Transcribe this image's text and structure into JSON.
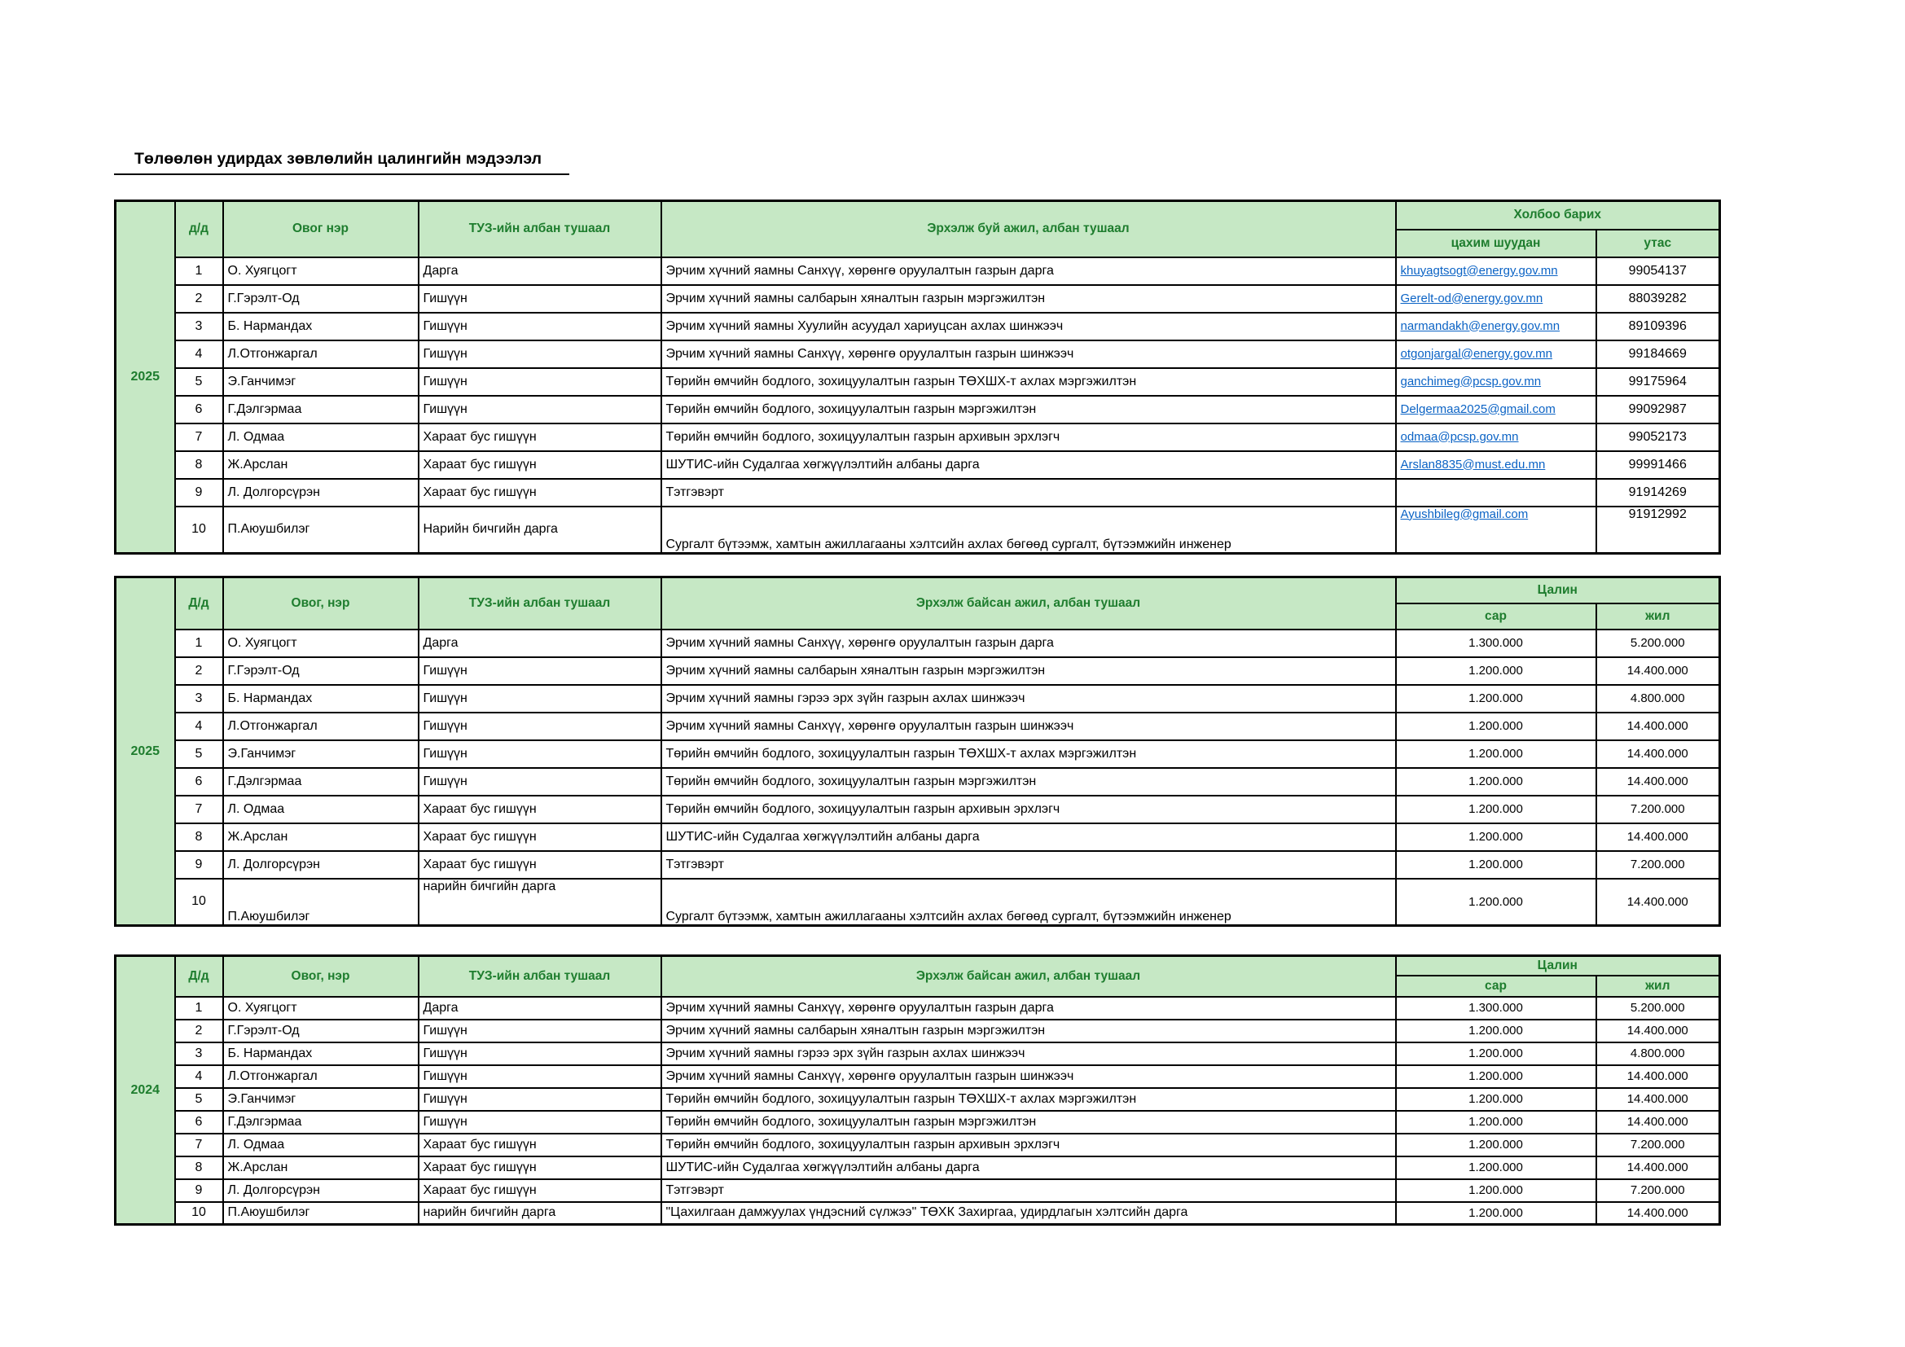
{
  "page": {
    "title": "Төлөөлөн удирдах зөвлөлийн цалингийн мэдээлэл"
  },
  "colors": {
    "header_fill": "#c6e8c5",
    "header_text": "#1e7d2e",
    "link_blue": "#0b63c5",
    "border": "#000000"
  },
  "tables": [
    {
      "id": "contacts-2025",
      "year": "2025",
      "kind": "contacts",
      "columns": {
        "index": "д/д",
        "name": "Овог нэр",
        "position": "ТУЗ-ийн албан тушаал",
        "job": "Эрхэлж буй ажил, албан тушаал",
        "group": "Холбоо барих",
        "col1": "цахим шуудан",
        "col2": "утас"
      },
      "rows": [
        {
          "index": "1",
          "name": "О. Хуягцогт",
          "position": "Дарга",
          "job": "Эрчим хүчний яамны Санхүү, хөрөнгө оруулалтын газрын дарга",
          "email": "khuyagtsogt@energy.gov.mn",
          "phone": "99054137"
        },
        {
          "index": "2",
          "name": "Г.Гэрэлт-Од",
          "position": "Гишүүн",
          "job": "Эрчим хүчний яамны салбарын хяналтын газрын мэргэжилтэн",
          "email": "Gerelt-od@energy.gov.mn",
          "phone": "88039282"
        },
        {
          "index": "3",
          "name": "Б. Нармандах",
          "position": "Гишүүн",
          "job": "Эрчим хүчний яамны Хуулийн асуудал хариуцсан ахлах шинжээч",
          "email": "narmandakh@energy.gov.mn",
          "phone": "89109396"
        },
        {
          "index": "4",
          "name": "Л.Отгонжаргал",
          "position": "Гишүүн",
          "job": "Эрчим хүчний яамны Санхүү, хөрөнгө оруулалтын газрын шинжээч",
          "email": "otgonjargal@energy.gov.mn",
          "phone": "99184669"
        },
        {
          "index": "5",
          "name": "Э.Ганчимэг",
          "position": "Гишүүн",
          "job": "Төрийн өмчийн бодлого, зохицуулалтын газрын ТӨХШХ-т ахлах мэргэжилтэн",
          "email": "ganchimeg@pcsp.gov.mn",
          "phone": "99175964"
        },
        {
          "index": "6",
          "name": "Г.Дэлгэрмаа",
          "position": "Гишүүн",
          "job": "Төрийн өмчийн бодлого, зохицуулалтын газрын мэргэжилтэн",
          "email": "Delgermaa2025@gmail.com",
          "phone": "99092987"
        },
        {
          "index": "7",
          "name": "Л. Одмаа",
          "position": "Хараат бус гишүүн",
          "job": "Төрийн өмчийн бодлого, зохицуулалтын газрын архивын эрхлэгч",
          "email": "odmaa@pcsp.gov.mn",
          "phone": "99052173"
        },
        {
          "index": "8",
          "name": "Ж.Арслан",
          "position": "Хараат бус гишүүн",
          "job": "ШУТИС-ийн Судалгаа хөгжүүлэлтийн албаны дарга",
          "email": "Arslan8835@must.edu.mn",
          "phone": "99991466"
        },
        {
          "index": "9",
          "name": "Л. Долгорсүрэн",
          "position": "Хараат бус гишүүн",
          "job": "Тэтгэвэрт",
          "email": "",
          "phone": "91914269"
        },
        {
          "index": "10",
          "name": "П.Аюушбилэг",
          "position": "Нарийн бичгийн дарга",
          "job": "Сургалт бүтээмж, хамтын ажиллагааны хэлтсийн ахлах бөгөөд сургалт, бүтээмжийн инженер",
          "email": "Ayushbileg@gmail.com",
          "phone": "91912992"
        }
      ]
    },
    {
      "id": "salary-2025",
      "year": "2025",
      "kind": "salary",
      "columns": {
        "index": "Д/д",
        "name": "Овог, нэр",
        "position": "ТУЗ-ийн албан тушаал",
        "job": "Эрхэлж байсан ажил, албан тушаал",
        "group": "Цалин",
        "col1": "сар",
        "col2": "жил"
      },
      "rows": [
        {
          "index": "1",
          "name": "О. Хуягцогт",
          "position": "Дарга",
          "job": "Эрчим хүчний яамны Санхүү, хөрөнгө оруулалтын газрын дарга",
          "monthly": "1.300.000",
          "yearly": "5.200.000"
        },
        {
          "index": "2",
          "name": "Г.Гэрэлт-Од",
          "position": "Гишүүн",
          "job": "Эрчим хүчний яамны салбарын хяналтын газрын мэргэжилтэн",
          "monthly": "1.200.000",
          "yearly": "14.400.000"
        },
        {
          "index": "3",
          "name": "Б. Нармандах",
          "position": "Гишүүн",
          "job": "Эрчим хүчний яамны гэрээ эрх зүйн газрын ахлах шинжээч",
          "monthly": "1.200.000",
          "yearly": "4.800.000"
        },
        {
          "index": "4",
          "name": "Л.Отгонжаргал",
          "position": "Гишүүн",
          "job": "Эрчим хүчний яамны Санхүү, хөрөнгө оруулалтын газрын шинжээч",
          "monthly": "1.200.000",
          "yearly": "14.400.000"
        },
        {
          "index": "5",
          "name": "Э.Ганчимэг",
          "position": "Гишүүн",
          "job": "Төрийн өмчийн бодлого, зохицуулалтын газрын ТӨХШХ-т ахлах мэргэжилтэн",
          "monthly": "1.200.000",
          "yearly": "14.400.000"
        },
        {
          "index": "6",
          "name": "Г.Дэлгэрмаа",
          "position": "Гишүүн",
          "job": "Төрийн өмчийн бодлого, зохицуулалтын газрын мэргэжилтэн",
          "monthly": "1.200.000",
          "yearly": "14.400.000"
        },
        {
          "index": "7",
          "name": "Л. Одмаа",
          "position": "Хараат бус гишүүн",
          "job": "Төрийн өмчийн бодлого, зохицуулалтын газрын архивын эрхлэгч",
          "monthly": "1.200.000",
          "yearly": "7.200.000"
        },
        {
          "index": "8",
          "name": "Ж.Арслан",
          "position": "Хараат бус гишүүн",
          "job": "ШУТИС-ийн Судалгаа хөгжүүлэлтийн албаны дарга",
          "monthly": "1.200.000",
          "yearly": "14.400.000"
        },
        {
          "index": "9",
          "name": "Л. Долгорсүрэн",
          "position": "Хараат бус гишүүн",
          "job": "Тэтгэвэрт",
          "monthly": "1.200.000",
          "yearly": "7.200.000"
        },
        {
          "index": "10",
          "name": "П.Аюушбилэг",
          "position": "нарийн бичгийн дарга",
          "job": "Сургалт бүтээмж, хамтын ажиллагааны хэлтсийн ахлах бөгөөд сургалт, бүтээмжийн инженер",
          "monthly": "1.200.000",
          "yearly": "14.400.000"
        }
      ]
    },
    {
      "id": "salary-2024",
      "year": "2024",
      "kind": "salary",
      "columns": {
        "index": "Д/д",
        "name": "Овог, нэр",
        "position": "ТУЗ-ийн албан тушаал",
        "job": "Эрхэлж байсан ажил, албан тушаал",
        "group": "Цалин",
        "col1": "сар",
        "col2": "жил"
      },
      "rows": [
        {
          "index": "1",
          "name": "О. Хуягцогт",
          "position": "Дарга",
          "job": "Эрчим хүчний яамны Санхүү, хөрөнгө оруулалтын газрын дарга",
          "monthly": "1.300.000",
          "yearly": "5.200.000"
        },
        {
          "index": "2",
          "name": "Г.Гэрэлт-Од",
          "position": "Гишүүн",
          "job": "Эрчим хүчний яамны салбарын хяналтын газрын мэргэжилтэн",
          "monthly": "1.200.000",
          "yearly": "14.400.000"
        },
        {
          "index": "3",
          "name": "Б. Нармандах",
          "position": "Гишүүн",
          "job": "Эрчим хүчний яамны гэрээ эрх зүйн газрын ахлах шинжээч",
          "monthly": "1.200.000",
          "yearly": "4.800.000"
        },
        {
          "index": "4",
          "name": "Л.Отгонжаргал",
          "position": "Гишүүн",
          "job": "Эрчим хүчний яамны Санхүү, хөрөнгө оруулалтын газрын шинжээч",
          "monthly": "1.200.000",
          "yearly": "14.400.000"
        },
        {
          "index": "5",
          "name": "Э.Ганчимэг",
          "position": "Гишүүн",
          "job": "Төрийн өмчийн бодлого, зохицуулалтын газрын ТӨХШХ-т ахлах мэргэжилтэн",
          "monthly": "1.200.000",
          "yearly": "14.400.000"
        },
        {
          "index": "6",
          "name": "Г.Дэлгэрмаа",
          "position": "Гишүүн",
          "job": "Төрийн өмчийн бодлого, зохицуулалтын газрын мэргэжилтэн",
          "monthly": "1.200.000",
          "yearly": "14.400.000"
        },
        {
          "index": "7",
          "name": "Л. Одмаа",
          "position": "Хараат бус гишүүн",
          "job": "Төрийн өмчийн бодлого, зохицуулалтын газрын архивын эрхлэгч",
          "monthly": "1.200.000",
          "yearly": "7.200.000"
        },
        {
          "index": "8",
          "name": "Ж.Арслан",
          "position": "Хараат бус гишүүн",
          "job": "ШУТИС-ийн Судалгаа хөгжүүлэлтийн албаны дарга",
          "monthly": "1.200.000",
          "yearly": "14.400.000"
        },
        {
          "index": "9",
          "name": "Л. Долгорсүрэн",
          "position": "Хараат бус гишүүн",
          "job": "Тэтгэвэрт",
          "monthly": "1.200.000",
          "yearly": "7.200.000"
        },
        {
          "index": "10",
          "name": "П.Аюушбилэг",
          "position": "нарийн бичгийн дарга",
          "job": "\"Цахилгаан дамжуулах үндэсний сүлжээ\" ТӨХК Захиргаа, удирдлагын хэлтсийн дарга",
          "monthly": "1.200.000",
          "yearly": "14.400.000"
        }
      ]
    }
  ]
}
